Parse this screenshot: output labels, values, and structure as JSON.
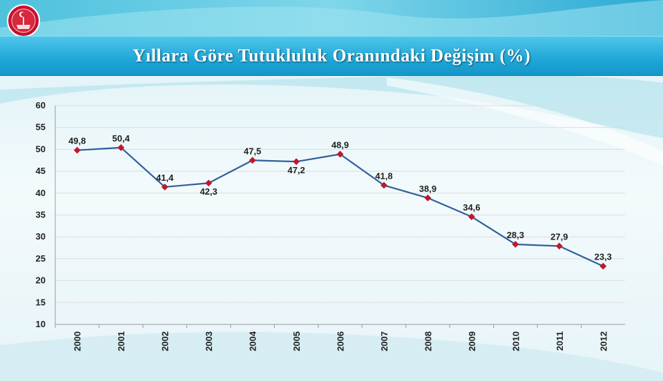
{
  "header": {
    "title": "Yıllara Göre Tutukluluk Oranındaki Değişim (%)",
    "emblem_icon": "ministry-seal-icon"
  },
  "colors": {
    "title_bar": "#1ea6d8",
    "line": "#2e5f9b",
    "marker": "#c0182b",
    "grid": "#dcdcdc",
    "emblem": "#c8102e"
  },
  "chart_data": {
    "type": "line",
    "title": "Yıllara Göre Tutukluluk Oranındaki Değişim (%)",
    "xlabel": "",
    "ylabel": "",
    "categories": [
      "2000",
      "2001",
      "2002",
      "2003",
      "2004",
      "2005",
      "2006",
      "2007",
      "2008",
      "2009",
      "2010",
      "2011",
      "2012"
    ],
    "series": [
      {
        "values": [
          49.8,
          50.4,
          41.4,
          42.3,
          47.5,
          47.2,
          48.9,
          41.8,
          38.9,
          34.6,
          28.3,
          27.9,
          23.3
        ]
      }
    ],
    "data_labels": [
      "49,8",
      "50,4",
      "41,4",
      "42,3",
      "47,5",
      "47,2",
      "48,9",
      "41,8",
      "38,9",
      "34,6",
      "28,3",
      "27,9",
      "23,3"
    ],
    "y_ticks": [
      "10",
      "15",
      "20",
      "25",
      "30",
      "35",
      "40",
      "45",
      "50",
      "55",
      "60"
    ],
    "ylim": [
      10,
      60
    ],
    "grid": true,
    "legend": "none"
  }
}
